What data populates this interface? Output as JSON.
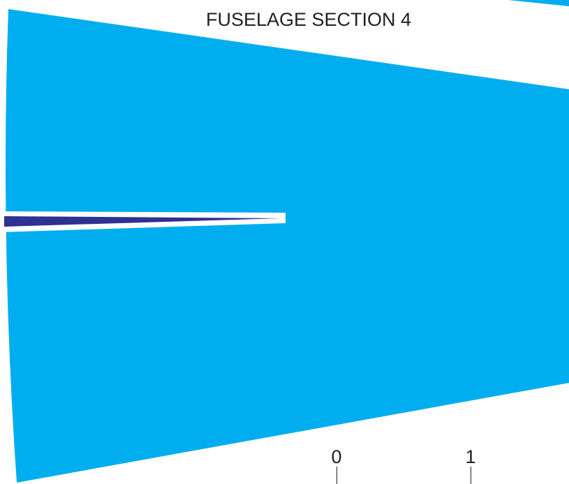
{
  "title": "FUSELAGE SECTION 4",
  "scale": {
    "ticks": [
      "0",
      "1"
    ]
  },
  "colors": {
    "section_fill": "#00aeef",
    "slot_fill": "#2e3192",
    "text": "#231f20",
    "background": "#ffffff"
  }
}
